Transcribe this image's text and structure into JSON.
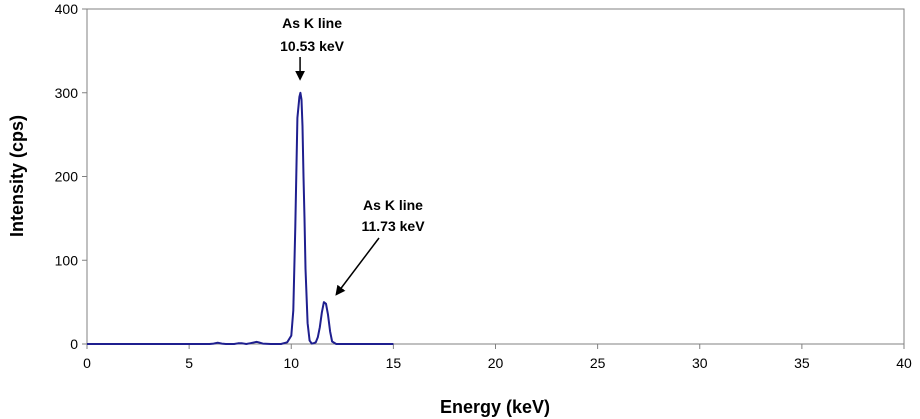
{
  "chart_data": {
    "type": "line",
    "title": "",
    "xlabel": "Energy (keV)",
    "ylabel": "Intensity (cps)",
    "xlim": [
      0,
      40
    ],
    "ylim": [
      0,
      400
    ],
    "x_ticks": [
      0,
      5,
      10,
      15,
      20,
      25,
      30,
      35,
      40
    ],
    "y_ticks": [
      0,
      100,
      200,
      300,
      400
    ],
    "x_tick_labels": [
      "0",
      "5",
      "10",
      "15",
      "20",
      "25",
      "30",
      "35",
      "40"
    ],
    "y_tick_labels": [
      "0",
      "100",
      "200",
      "300",
      "400"
    ],
    "grid": false,
    "legend": "none",
    "line_color": "#1f1f8f",
    "series": [
      {
        "x": [
          0,
          1,
          2,
          3,
          4,
          5,
          6,
          6.2,
          6.4,
          6.6,
          6.8,
          7.2,
          7.4,
          7.5,
          7.6,
          7.8,
          8.0,
          8.2,
          8.3,
          8.4,
          8.6,
          9.0,
          9.5,
          9.8,
          10.0,
          10.1,
          10.2,
          10.3,
          10.4,
          10.45,
          10.5,
          10.55,
          10.6,
          10.65,
          10.7,
          10.8,
          10.9,
          11.0,
          11.1,
          11.2,
          11.3,
          11.4,
          11.5,
          11.6,
          11.7,
          11.8,
          11.9,
          12.0,
          12.2,
          12.5,
          13,
          14,
          15
        ],
        "y": [
          0,
          0,
          0,
          0,
          0,
          0,
          0,
          0.5,
          1.5,
          0.5,
          0,
          0,
          0.8,
          1,
          0.8,
          0,
          1,
          2,
          2.5,
          2,
          0.5,
          0,
          0,
          2,
          10,
          40,
          140,
          270,
          295,
          300,
          292,
          260,
          200,
          150,
          90,
          25,
          4,
          0.5,
          1,
          2,
          8,
          20,
          38,
          50,
          48,
          35,
          15,
          3,
          0,
          0,
          0,
          0,
          0
        ]
      }
    ],
    "annotations": [
      {
        "line1": "As K  line",
        "line2": "10.53 keV",
        "x": 10.53,
        "y": 300
      },
      {
        "line1": "As K  line",
        "line2": "11.73 keV",
        "x": 11.73,
        "y": 50
      }
    ]
  }
}
